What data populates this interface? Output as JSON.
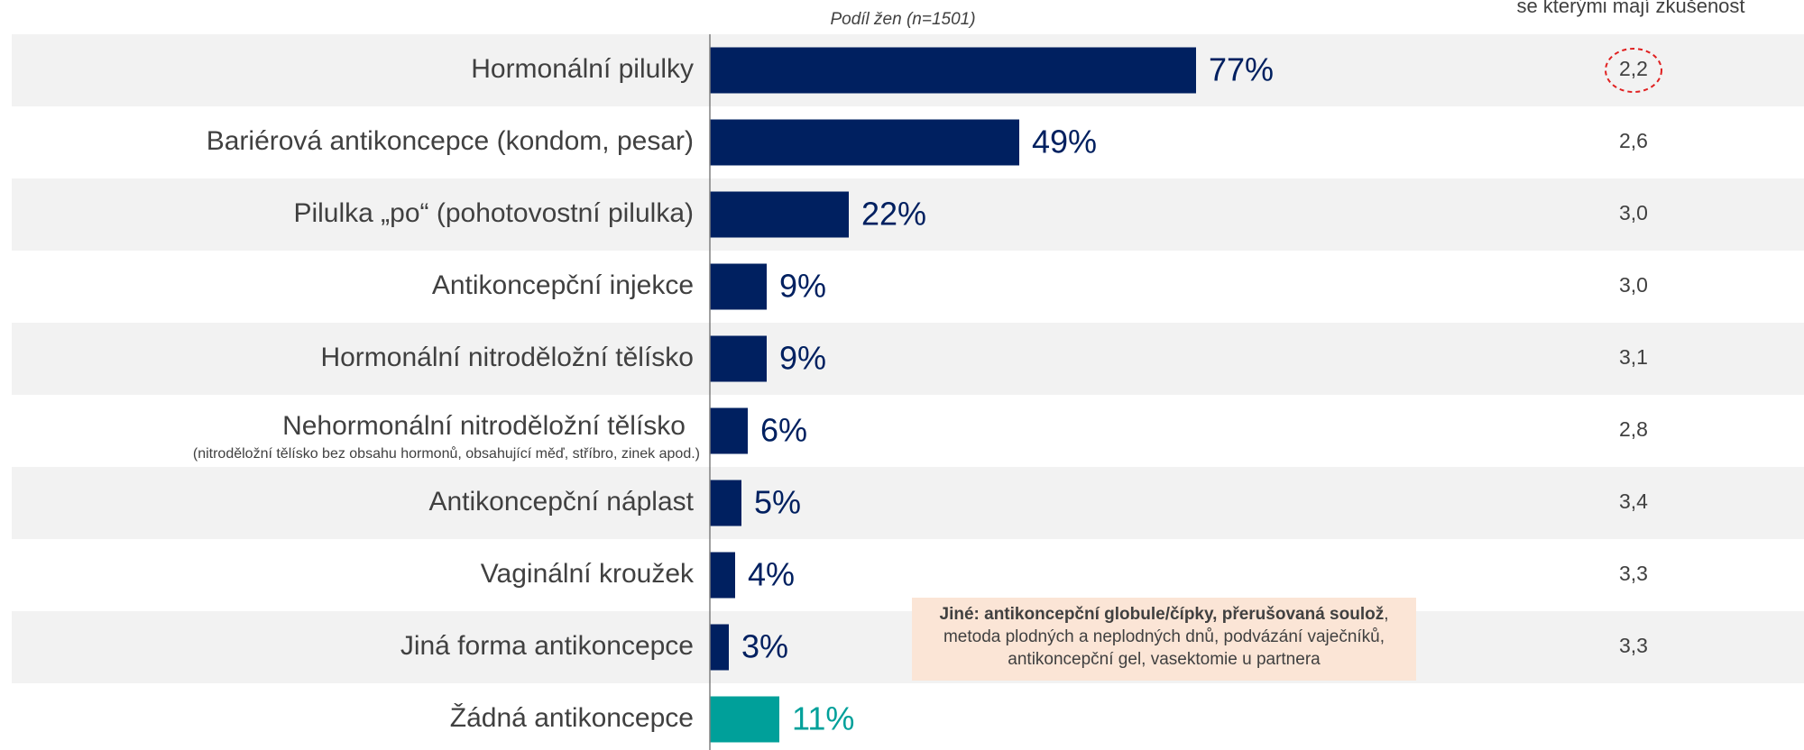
{
  "chart_data": {
    "type": "bar",
    "orientation": "horizontal",
    "subtitle": "Podíl žen (n=1501)",
    "right_header": "se kterými mají zkušenost",
    "categories": [
      "Hormonální pilulky",
      "Bariérová antikoncepce (kondom, pesar)",
      "Pilulka „po“ (pohotovostní pilulka)",
      "Antikoncepční injekce",
      "Hormonální nitroděložní tělísko",
      "Nehormonální nitroděložní tělísko",
      "Antikoncepční náplast",
      "Vaginální kroužek",
      "Jiná forma antikoncepce",
      "Žádná antikoncepce"
    ],
    "category_notes": [
      null,
      null,
      null,
      null,
      null,
      "(nitroděložní tělísko bez obsahu hormonů, obsahující měď, stříbro, zinek apod.)",
      null,
      null,
      null,
      null
    ],
    "values": [
      77,
      49,
      22,
      9,
      9,
      6,
      5,
      4,
      3,
      11
    ],
    "value_labels": [
      "77%",
      "49%",
      "22%",
      "9%",
      "9%",
      "6%",
      "5%",
      "4%",
      "3%",
      "11%"
    ],
    "colors": [
      "#002060",
      "#002060",
      "#002060",
      "#002060",
      "#002060",
      "#002060",
      "#002060",
      "#002060",
      "#002060",
      "#00a09a"
    ],
    "ratings": [
      {
        "value": 2.2,
        "label": "2,2"
      },
      {
        "value": 2.6,
        "label": "2,6"
      },
      {
        "value": 3.0,
        "label": "3,0"
      },
      {
        "value": 3.0,
        "label": "3,0"
      },
      {
        "value": 3.1,
        "label": "3,1"
      },
      {
        "value": 2.8,
        "label": "2,8"
      },
      {
        "value": 3.4,
        "label": "3,4"
      },
      {
        "value": 3.3,
        "label": "3,3"
      },
      {
        "value": 3.3,
        "label": "3,3"
      },
      null
    ],
    "note_bold": "Jiné: antikoncepční globule/čípky, přerušovaná soulož",
    "note_text": ", metoda plodných a neplodných dnů, podvázání vaječníků, antikoncepční gel, vasektomie u partnera"
  }
}
